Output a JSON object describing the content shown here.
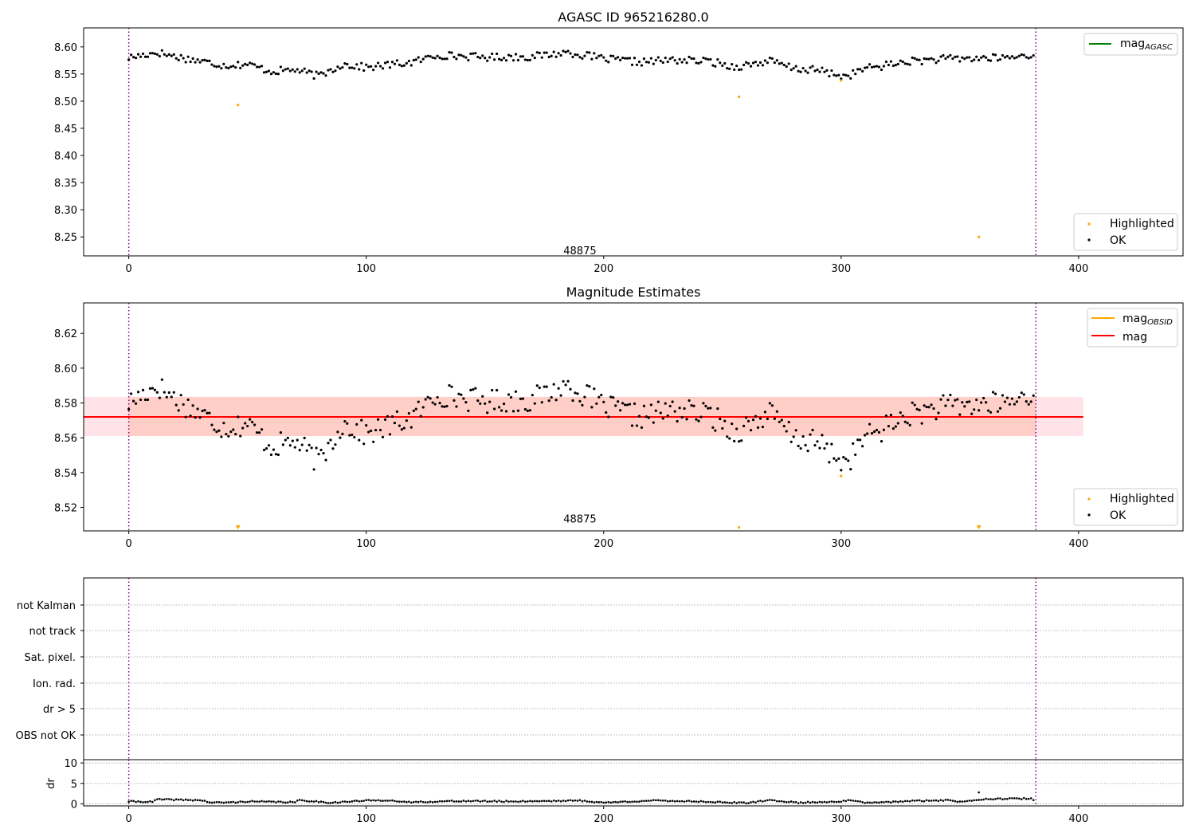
{
  "colors": {
    "ok": "#000000",
    "highlighted": "#ffa500",
    "mag_agasc": "#008000",
    "mag_obsid": "#ffa500",
    "mag": "#ff0000",
    "band_outer": "#ffc0cb",
    "band_inner": "#ffa07a",
    "obsid_line": "#800080",
    "grid": "#b0b0b0"
  },
  "chart_data": [
    {
      "type": "scatter",
      "title": "AGASC ID 965216280.0",
      "xlim": [
        -19,
        444
      ],
      "ylim": [
        8.215,
        8.635
      ],
      "xticks": [
        "0",
        "100",
        "200",
        "300",
        "400"
      ],
      "yticks": [
        "8.25",
        "8.30",
        "8.35",
        "8.40",
        "8.45",
        "8.50",
        "8.55",
        "8.60"
      ],
      "obsid_lines": [
        0,
        382
      ],
      "annotation": {
        "text": "48875",
        "x": 190,
        "y": 8.225
      },
      "legend_lines": [
        {
          "name": "mag",
          "sub": "AGASC",
          "color_key": "mag_agasc",
          "value": null
        }
      ],
      "legend_points": [
        "Highlighted",
        "OK"
      ],
      "highlighted": [
        [
          46,
          8.493
        ],
        [
          257,
          8.508
        ],
        [
          300,
          8.538
        ],
        [
          358,
          8.25
        ]
      ],
      "ok_profile": {
        "n": 382,
        "anchors": [
          [
            0,
            8.58
          ],
          [
            12,
            8.59
          ],
          [
            20,
            8.582
          ],
          [
            40,
            8.566
          ],
          [
            50,
            8.568
          ],
          [
            60,
            8.555
          ],
          [
            70,
            8.558
          ],
          [
            80,
            8.546
          ],
          [
            90,
            8.568
          ],
          [
            100,
            8.562
          ],
          [
            120,
            8.572
          ],
          [
            130,
            8.585
          ],
          [
            150,
            8.581
          ],
          [
            170,
            8.582
          ],
          [
            185,
            8.59
          ],
          [
            200,
            8.578
          ],
          [
            215,
            8.572
          ],
          [
            230,
            8.576
          ],
          [
            245,
            8.573
          ],
          [
            255,
            8.563
          ],
          [
            270,
            8.574
          ],
          [
            280,
            8.56
          ],
          [
            290,
            8.557
          ],
          [
            302,
            8.545
          ],
          [
            310,
            8.56
          ],
          [
            330,
            8.574
          ],
          [
            345,
            8.578
          ],
          [
            370,
            8.58
          ],
          [
            382,
            8.586
          ]
        ]
      }
    },
    {
      "type": "scatter",
      "title": "Magnitude Estimates",
      "xlim": [
        -19,
        444
      ],
      "ylim": [
        8.5065,
        8.6375
      ],
      "xticks": [
        "0",
        "100",
        "200",
        "300",
        "400"
      ],
      "yticks": [
        "8.52",
        "8.54",
        "8.56",
        "8.58",
        "8.60",
        "8.62"
      ],
      "obsid_lines": [
        0,
        382
      ],
      "annotation": {
        "text": "48875",
        "x": 190,
        "y": 8.509
      },
      "legend_lines": [
        {
          "name": "mag",
          "sub": "OBSID",
          "color_key": "mag_obsid",
          "value": 8.572
        },
        {
          "name": "mag",
          "sub": "",
          "color_key": "mag",
          "value": 8.572
        }
      ],
      "legend_points": [
        "Highlighted",
        "OK"
      ],
      "band_outer": {
        "x": [
          -19,
          402
        ],
        "y": [
          8.561,
          8.5835
        ]
      },
      "band_inner": {
        "x": [
          0,
          382
        ],
        "y": [
          8.561,
          8.5835
        ]
      },
      "highlighted": [
        [
          300,
          8.538
        ],
        [
          257,
          8.5085
        ]
      ],
      "below_markers": [
        46,
        358
      ],
      "ok_profile": {
        "n": 382,
        "anchors": [
          [
            0,
            8.58
          ],
          [
            12,
            8.59
          ],
          [
            20,
            8.582
          ],
          [
            40,
            8.566
          ],
          [
            50,
            8.568
          ],
          [
            60,
            8.555
          ],
          [
            70,
            8.558
          ],
          [
            80,
            8.546
          ],
          [
            90,
            8.568
          ],
          [
            100,
            8.562
          ],
          [
            120,
            8.572
          ],
          [
            130,
            8.585
          ],
          [
            150,
            8.581
          ],
          [
            170,
            8.582
          ],
          [
            185,
            8.59
          ],
          [
            200,
            8.578
          ],
          [
            215,
            8.572
          ],
          [
            230,
            8.576
          ],
          [
            245,
            8.573
          ],
          [
            255,
            8.563
          ],
          [
            270,
            8.574
          ],
          [
            280,
            8.56
          ],
          [
            290,
            8.557
          ],
          [
            302,
            8.545
          ],
          [
            310,
            8.56
          ],
          [
            330,
            8.574
          ],
          [
            345,
            8.578
          ],
          [
            370,
            8.58
          ],
          [
            382,
            8.586
          ]
        ]
      }
    },
    {
      "type": "scatter",
      "xlim": [
        -19,
        444
      ],
      "categories": [
        "not Kalman",
        "not track",
        "Sat. pixel.",
        "Ion. rad.",
        "dr > 5",
        "OBS not OK"
      ],
      "obsid_lines": [
        0,
        382
      ]
    },
    {
      "type": "scatter",
      "ylabel": "dr",
      "xlim": [
        -19,
        444
      ],
      "ylim": [
        -0.5,
        10.8
      ],
      "xticks": [
        "0",
        "100",
        "200",
        "300",
        "400"
      ],
      "yticks": [
        "0",
        "5",
        "10"
      ],
      "obsid_lines": [
        0,
        382
      ],
      "spike": [
        358,
        2.8
      ],
      "dr_profile": {
        "n": 382,
        "anchors": [
          [
            0,
            0.6
          ],
          [
            10,
            0.5
          ],
          [
            12,
            1.1
          ],
          [
            30,
            0.9
          ],
          [
            35,
            0.3
          ],
          [
            45,
            0.4
          ],
          [
            50,
            0.6
          ],
          [
            70,
            0.4
          ],
          [
            72,
            0.9
          ],
          [
            85,
            0.3
          ],
          [
            100,
            0.8
          ],
          [
            110,
            0.9
          ],
          [
            115,
            0.4
          ],
          [
            140,
            0.7
          ],
          [
            160,
            0.6
          ],
          [
            190,
            0.8
          ],
          [
            200,
            0.3
          ],
          [
            220,
            0.8
          ],
          [
            240,
            0.6
          ],
          [
            260,
            0.2
          ],
          [
            270,
            0.9
          ],
          [
            282,
            0.3
          ],
          [
            300,
            0.6
          ],
          [
            305,
            0.9
          ],
          [
            310,
            0.2
          ],
          [
            330,
            0.7
          ],
          [
            345,
            0.9
          ],
          [
            350,
            0.5
          ],
          [
            360,
            1.2
          ],
          [
            380,
            1.3
          ],
          [
            382,
            0.3
          ]
        ]
      }
    }
  ]
}
